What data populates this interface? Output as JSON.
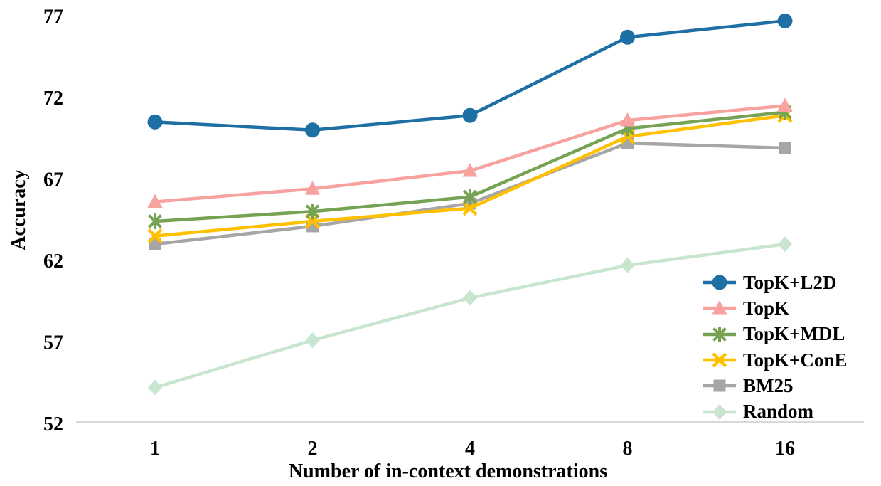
{
  "chart_data": {
    "type": "line",
    "title": "",
    "xlabel": "Number of in-context demonstrations",
    "ylabel": "Accuracy",
    "categories": [
      "1",
      "2",
      "4",
      "8",
      "16"
    ],
    "ylim": [
      52,
      77
    ],
    "yticks": [
      52,
      57,
      62,
      67,
      72,
      77
    ],
    "grid": false,
    "legend_position": "lower right",
    "axis_line_color": "#D9D9D9",
    "text_color": "#000000",
    "series": [
      {
        "name": "TopK+L2D",
        "color": "#1E6FA4",
        "marker": "circle",
        "values": [
          70.5,
          70.0,
          70.9,
          75.7,
          76.7
        ]
      },
      {
        "name": "TopK",
        "color": "#F8A2A0",
        "marker": "triangle",
        "values": [
          65.6,
          66.4,
          67.5,
          70.6,
          71.5
        ]
      },
      {
        "name": "TopK+MDL",
        "color": "#76A353",
        "marker": "asterisk",
        "values": [
          64.4,
          65.0,
          65.9,
          70.1,
          71.1
        ]
      },
      {
        "name": "TopK+ConE",
        "color": "#FFC000",
        "marker": "x",
        "values": [
          63.5,
          64.4,
          65.2,
          69.6,
          70.9
        ]
      },
      {
        "name": "BM25",
        "color": "#A6A6A6",
        "marker": "square",
        "values": [
          63.0,
          64.1,
          65.5,
          69.2,
          68.9
        ]
      },
      {
        "name": "Random",
        "color": "#C8E6CF",
        "marker": "diamond",
        "values": [
          54.2,
          57.1,
          59.7,
          61.7,
          63.0
        ]
      }
    ]
  }
}
